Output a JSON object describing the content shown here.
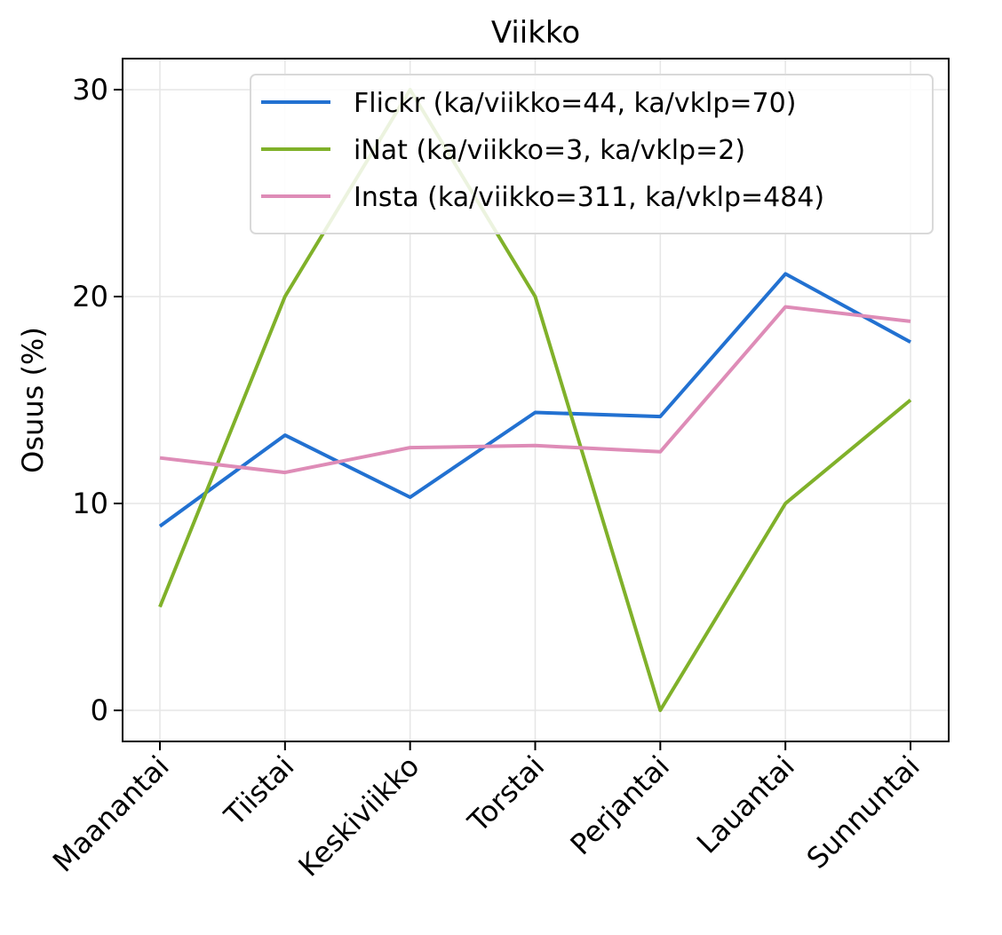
{
  "chart_data": {
    "type": "line",
    "title": "Viikko",
    "xlabel": "",
    "ylabel": "Osuus (%)",
    "categories": [
      "Maanantai",
      "Tiistai",
      "Keskiviikko",
      "Torstai",
      "Perjantai",
      "Lauantai",
      "Sunnuntai"
    ],
    "ylim": [
      -1.5,
      31.5
    ],
    "yticks": [
      0,
      10,
      20,
      30
    ],
    "grid": true,
    "legend_position": "upper-right",
    "series": [
      {
        "name": "Flickr (ka/viikko=44, ka/vklp=70)",
        "color": "#2271d1",
        "values": [
          8.9,
          13.3,
          10.3,
          14.4,
          14.2,
          21.1,
          17.8
        ]
      },
      {
        "name": "iNat (ka/viikko=3, ka/vklp=2)",
        "color": "#80b12a",
        "values": [
          5.0,
          20.0,
          30.0,
          20.0,
          0.0,
          10.0,
          15.0
        ]
      },
      {
        "name": "Insta (ka/viikko=311, ka/vklp=484)",
        "color": "#de8cb7",
        "values": [
          12.2,
          11.5,
          12.7,
          12.8,
          12.5,
          19.5,
          18.8
        ]
      }
    ]
  }
}
